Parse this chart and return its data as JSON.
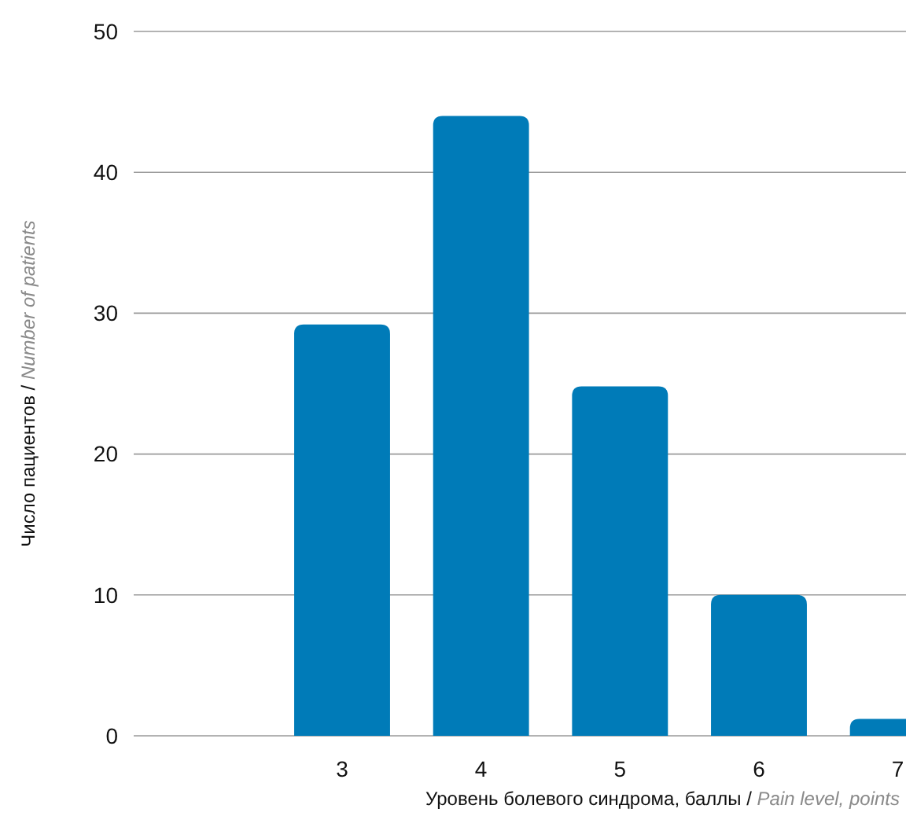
{
  "chart_data": {
    "type": "bar",
    "xlabel": "Уровень болевого синдрома, баллы / Pain level, points",
    "ylabel": "Число пациентов / Number of patients",
    "categories": [
      null,
      "3",
      "4",
      "5",
      "6",
      "7"
    ],
    "values": [
      null,
      29.2,
      44,
      24.8,
      10,
      1.2
    ],
    "color": "#007bb8",
    "ylim": [
      0,
      50
    ],
    "yticks": [
      0,
      10,
      20,
      30,
      40,
      50
    ],
    "grid": "y"
  }
}
